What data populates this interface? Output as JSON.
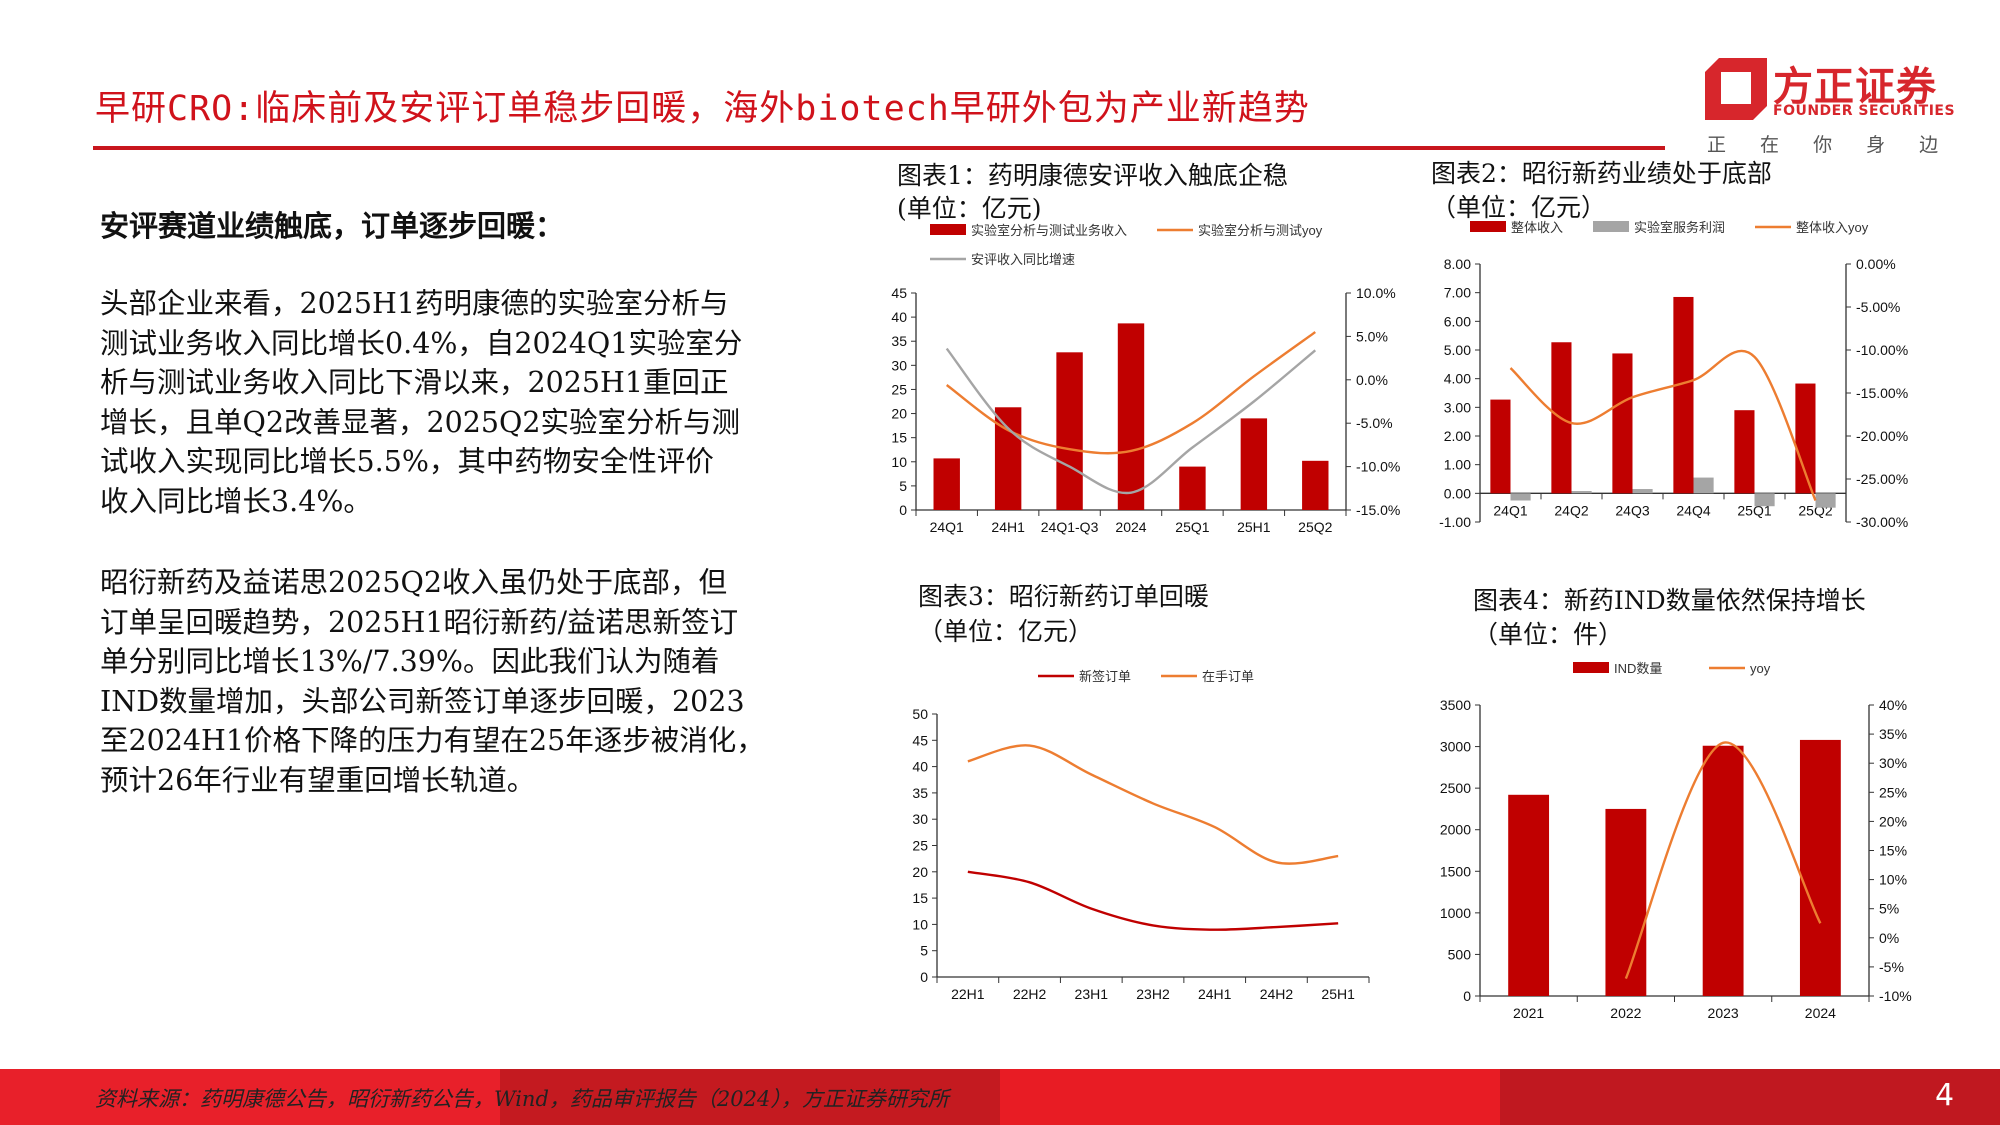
{
  "header": {
    "title": "早研CRO:临床前及安评订单稳步回暖，海外biotech早研外包为产业新趋势"
  },
  "logo": {
    "name_cn": "方正证券",
    "name_en": "FOUNDER SECURITIES",
    "slogan": "正 在 你 身 边"
  },
  "left": {
    "heading": "安评赛道业绩触底，订单逐步回暖：",
    "paragraphs": [
      {
        "lines": [
          "头部企业来看，2025H1药明康德的实验室分析与",
          "测试业务收入同比增长0.4%，自2024Q1实验室分",
          "析与测试业务收入同比下滑以来，2025H1重回正",
          "增长，且单Q2改善显著，2025Q2实验室分析与测",
          "试收入实现同比增长5.5%，其中药物安全性评价",
          "收入同比增长3.4%。"
        ]
      },
      {
        "lines": [
          "昭衍新药及益诺思2025Q2收入虽仍处于底部，但",
          "订单呈回暖趋势，2025H1昭衍新药/益诺思新签订",
          "单分别同比增长13%/7.39%。因此我们认为随着",
          "IND数量增加，头部公司新签订单逐步回暖，2023",
          "至2024H1价格下降的压力有望在25年逐步被消化，",
          "预计26年行业有望重回增长轨道。"
        ]
      }
    ]
  },
  "colors": {
    "red": "#c00000",
    "orange": "#ed7d31",
    "gray": "#a5a5a5",
    "brand": "#d0121b"
  },
  "chart_data": [
    {
      "type": "bar+line",
      "title": "图表1：药明康德安评收入触底企稳",
      "subtitle": "(单位：亿元)",
      "categories": [
        "24Q1",
        "24H1",
        "24Q1-Q3",
        "2024",
        "25Q1",
        "25H1",
        "25Q2"
      ],
      "ylim": [
        0,
        45
      ],
      "yticks": [
        "0",
        "5",
        "10",
        "15",
        "20",
        "25",
        "30",
        "35",
        "40",
        "45"
      ],
      "y2lim": [
        -15,
        10
      ],
      "y2ticks": [
        "-15.0%",
        "-10.0%",
        "-5.0%",
        "0.0%",
        "5.0%",
        "10.0%"
      ],
      "series": [
        {
          "name": "实验室分析与测试业务收入",
          "kind": "bar",
          "axis": "left",
          "color": "#c00000",
          "values": [
            10.7,
            21.3,
            32.7,
            38.7,
            9.0,
            19.0,
            10.2
          ]
        },
        {
          "name": "实验室分析与测试yoy",
          "kind": "line",
          "axis": "right",
          "color": "#ed7d31",
          "values": [
            -0.6,
            -5.8,
            -8.0,
            -8.2,
            -5.0,
            0.4,
            5.5
          ]
        },
        {
          "name": "安评收入同比增速",
          "kind": "line",
          "axis": "right",
          "color": "#a5a5a5",
          "values": [
            3.6,
            -5.6,
            -10.0,
            -13.0,
            -7.8,
            -2.5,
            3.4
          ]
        }
      ],
      "grid": false,
      "legend": "top"
    },
    {
      "type": "bar+line",
      "title": "图表2：昭衍新药业绩处于底部",
      "subtitle": "（单位：亿元）",
      "categories": [
        "24Q1",
        "24Q2",
        "24Q3",
        "24Q4",
        "25Q1",
        "25Q2"
      ],
      "ylim": [
        -1,
        8
      ],
      "yticks": [
        "-1.00",
        "0.00",
        "1.00",
        "2.00",
        "3.00",
        "4.00",
        "5.00",
        "6.00",
        "7.00",
        "8.00"
      ],
      "y2lim": [
        -30,
        0
      ],
      "y2ticks": [
        "-30.00%",
        "-25.00%",
        "-20.00%",
        "-15.00%",
        "-10.00%",
        "-5.00%",
        "0.00%"
      ],
      "series": [
        {
          "name": "整体收入",
          "kind": "bar",
          "axis": "left",
          "color": "#c00000",
          "values": [
            3.27,
            5.27,
            4.88,
            6.85,
            2.9,
            3.83
          ]
        },
        {
          "name": "实验室服务利润",
          "kind": "bar",
          "axis": "left",
          "color": "#a5a5a5",
          "values": [
            -0.25,
            0.08,
            0.15,
            0.55,
            -0.45,
            -0.5
          ]
        },
        {
          "name": "整体收入yoy",
          "kind": "line",
          "axis": "right",
          "color": "#ed7d31",
          "values": [
            -12.1,
            -18.5,
            -15.5,
            -13.5,
            -10.8,
            -27.5
          ]
        }
      ],
      "grid": false,
      "legend": "top"
    },
    {
      "type": "line",
      "title": "图表3：昭衍新药订单回暖",
      "subtitle": "（单位：亿元）",
      "categories": [
        "22H1",
        "22H2",
        "23H1",
        "23H2",
        "24H1",
        "24H2",
        "25H1"
      ],
      "ylim": [
        0,
        50
      ],
      "yticks": [
        "0",
        "5",
        "10",
        "15",
        "20",
        "25",
        "30",
        "35",
        "40",
        "45",
        "50"
      ],
      "series": [
        {
          "name": "新签订单",
          "kind": "line",
          "axis": "left",
          "color": "#c00000",
          "values": [
            20.0,
            18.0,
            13.0,
            9.8,
            9.0,
            9.5,
            10.2
          ]
        },
        {
          "name": "在手订单",
          "kind": "line",
          "axis": "left",
          "color": "#ed7d31",
          "values": [
            41.0,
            44.0,
            38.5,
            33.0,
            28.5,
            21.8,
            23.0
          ]
        }
      ],
      "grid": false,
      "legend": "top"
    },
    {
      "type": "bar+line",
      "title": "图表4：新药IND数量依然保持增长",
      "subtitle": "（单位：件）",
      "categories": [
        "2021",
        "2022",
        "2023",
        "2024"
      ],
      "ylim": [
        0,
        3500
      ],
      "yticks": [
        "0",
        "500",
        "1000",
        "1500",
        "2000",
        "2500",
        "3000",
        "3500"
      ],
      "y2lim": [
        -10,
        40
      ],
      "y2ticks": [
        "-10%",
        "-5%",
        "0%",
        "5%",
        "10%",
        "15%",
        "20%",
        "25%",
        "30%",
        "35%",
        "40%"
      ],
      "series": [
        {
          "name": "IND数量",
          "kind": "bar",
          "axis": "left",
          "color": "#c00000",
          "values": [
            2420,
            2250,
            3010,
            3080
          ]
        },
        {
          "name": "yoy",
          "kind": "line",
          "axis": "right",
          "color": "#ed7d31",
          "values": [
            null,
            -7.0,
            33.5,
            2.5
          ]
        }
      ],
      "grid": false,
      "legend": "top"
    }
  ],
  "footer": {
    "source": "资料来源：药明康德公告，昭衍新药公告，Wind，药品审评报告（2024），方正证券研究所",
    "page_number": "4"
  }
}
